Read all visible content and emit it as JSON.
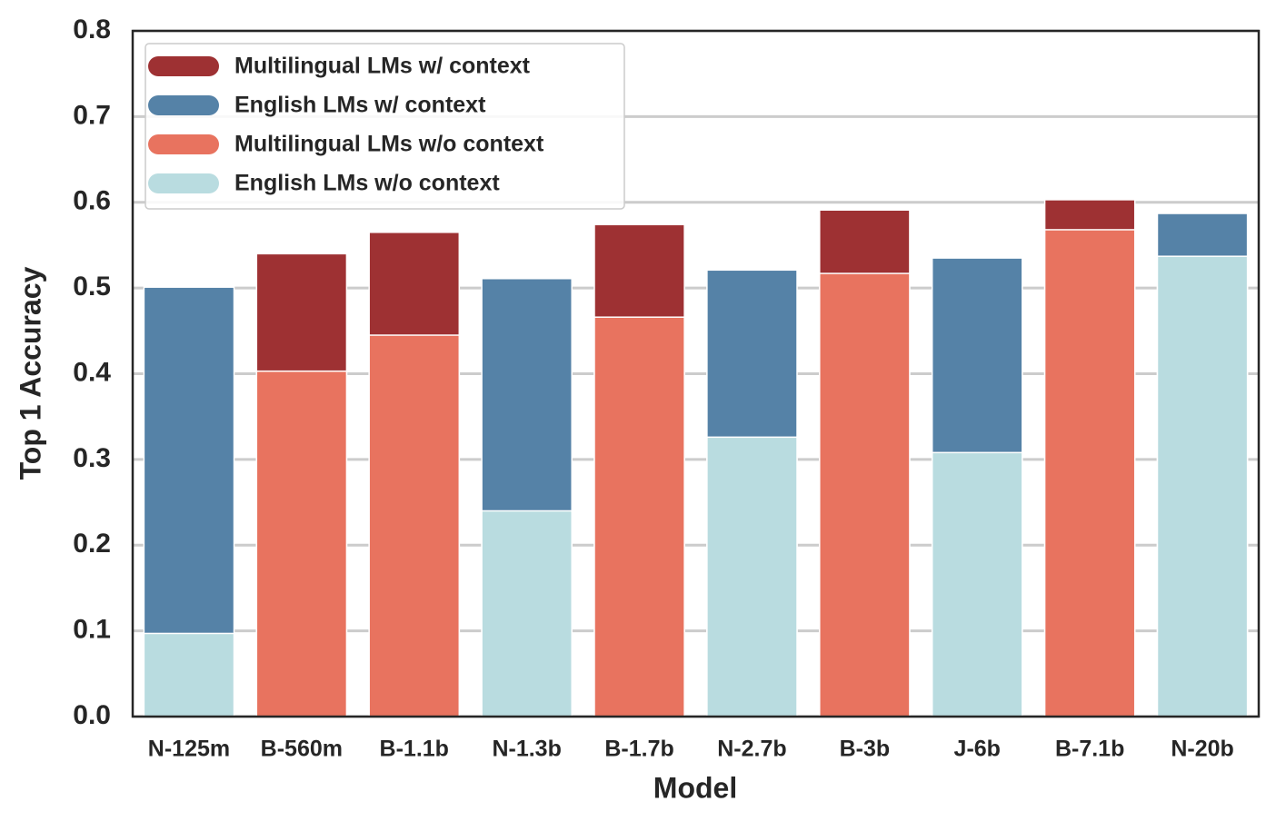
{
  "chart_data": {
    "type": "bar",
    "overlay": true,
    "xlabel": "Model",
    "ylabel": "Top 1 Accuracy",
    "categories": [
      "N-125m",
      "B-560m",
      "B-1.1b",
      "N-1.3b",
      "B-1.7b",
      "N-2.7b",
      "B-3b",
      "J-6b",
      "B-7.1b",
      "N-20b"
    ],
    "series": [
      {
        "name": "Multilingual LMs w/ context",
        "color": "#9e3133",
        "values": [
          null,
          0.54,
          0.565,
          null,
          0.574,
          null,
          0.591,
          null,
          0.603,
          null
        ]
      },
      {
        "name": "English LMs w/ context",
        "color": "#5582a7",
        "values": [
          0.501,
          null,
          null,
          0.511,
          null,
          0.521,
          null,
          0.535,
          null,
          0.587
        ]
      },
      {
        "name": "Multilingual LMs w/o context",
        "color": "#e8735f",
        "values": [
          null,
          0.403,
          0.445,
          null,
          0.466,
          null,
          0.517,
          null,
          0.568,
          null
        ]
      },
      {
        "name": "English LMs w/o context",
        "color": "#b9dce0",
        "values": [
          0.097,
          null,
          null,
          0.24,
          null,
          0.326,
          null,
          0.308,
          null,
          0.537
        ]
      }
    ],
    "ylim": [
      0,
      0.8
    ],
    "yticks": [
      {
        "value": 0,
        "label": "0.0"
      },
      0.1,
      0.2,
      0.3,
      0.4,
      0.5,
      0.6,
      0.7,
      0.8
    ],
    "grid": true,
    "legend": "upper left"
  }
}
